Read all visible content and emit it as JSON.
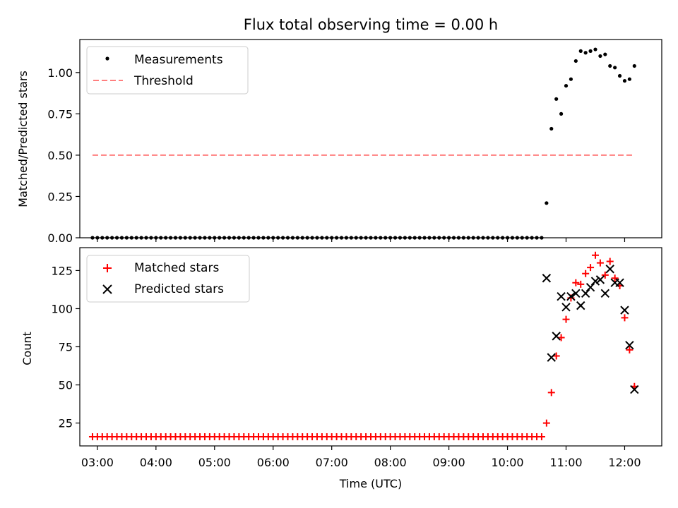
{
  "figure": {
    "title": "Flux total observing time = 0.00 h",
    "xlabel": "Time (UTC)",
    "xticks": [
      "03:00",
      "04:00",
      "05:00",
      "06:00",
      "07:00",
      "08:00",
      "09:00",
      "10:00",
      "11:00",
      "12:00"
    ]
  },
  "chart_data": [
    {
      "type": "scatter",
      "panel": "top",
      "ylabel": "Matched/Predicted stars",
      "xlim": [
        "02:42",
        "12:38"
      ],
      "ylim": [
        0,
        1.2
      ],
      "yticks": [
        "0.00",
        "0.25",
        "0.50",
        "0.75",
        "1.00"
      ],
      "legend_position": "top-left",
      "series": [
        {
          "name": "Measurements",
          "marker": "dot",
          "color": "#000000",
          "x": [
            "02:55",
            "03:00",
            "03:05",
            "03:10",
            "03:15",
            "03:20",
            "03:25",
            "03:30",
            "03:35",
            "03:40",
            "03:45",
            "03:50",
            "03:55",
            "04:00",
            "04:05",
            "04:10",
            "04:15",
            "04:20",
            "04:25",
            "04:30",
            "04:35",
            "04:40",
            "04:45",
            "04:50",
            "04:55",
            "05:00",
            "05:05",
            "05:10",
            "05:15",
            "05:20",
            "05:25",
            "05:30",
            "05:35",
            "05:40",
            "05:45",
            "05:50",
            "05:55",
            "06:00",
            "06:05",
            "06:10",
            "06:15",
            "06:20",
            "06:25",
            "06:30",
            "06:35",
            "06:40",
            "06:45",
            "06:50",
            "06:55",
            "07:00",
            "07:05",
            "07:10",
            "07:15",
            "07:20",
            "07:25",
            "07:30",
            "07:35",
            "07:40",
            "07:45",
            "07:50",
            "07:55",
            "08:00",
            "08:05",
            "08:10",
            "08:15",
            "08:20",
            "08:25",
            "08:30",
            "08:35",
            "08:40",
            "08:45",
            "08:50",
            "08:55",
            "09:00",
            "09:05",
            "09:10",
            "09:15",
            "09:20",
            "09:25",
            "09:30",
            "09:35",
            "09:40",
            "09:45",
            "09:50",
            "09:55",
            "10:00",
            "10:05",
            "10:10",
            "10:15",
            "10:20",
            "10:25",
            "10:30",
            "10:35",
            "10:40",
            "10:45",
            "10:50",
            "10:55",
            "11:00",
            "11:05",
            "11:10",
            "11:15",
            "11:20",
            "11:25",
            "11:30",
            "11:35",
            "11:40",
            "11:45",
            "11:50",
            "11:55",
            "12:00",
            "12:05",
            "12:10"
          ],
          "y": [
            0,
            0,
            0,
            0,
            0,
            0,
            0,
            0,
            0,
            0,
            0,
            0,
            0,
            0,
            0,
            0,
            0,
            0,
            0,
            0,
            0,
            0,
            0,
            0,
            0,
            0,
            0,
            0,
            0,
            0,
            0,
            0,
            0,
            0,
            0,
            0,
            0,
            0,
            0,
            0,
            0,
            0,
            0,
            0,
            0,
            0,
            0,
            0,
            0,
            0,
            0,
            0,
            0,
            0,
            0,
            0,
            0,
            0,
            0,
            0,
            0,
            0,
            0,
            0,
            0,
            0,
            0,
            0,
            0,
            0,
            0,
            0,
            0,
            0,
            0,
            0,
            0,
            0,
            0,
            0,
            0,
            0,
            0,
            0,
            0,
            0,
            0,
            0,
            0,
            0,
            0,
            0,
            0,
            0.21,
            0.66,
            0.84,
            0.75,
            0.92,
            0.96,
            1.07,
            1.13,
            1.12,
            1.13,
            1.14,
            1.1,
            1.11,
            1.04,
            1.03,
            0.98,
            0.95,
            0.96,
            1.04
          ]
        },
        {
          "name": "Threshold",
          "style": "dashed",
          "color": "#ff7f7f",
          "x": [
            "02:55",
            "12:10"
          ],
          "y": [
            0.5,
            0.5
          ]
        }
      ]
    },
    {
      "type": "scatter",
      "panel": "bottom",
      "ylabel": "Count",
      "xlim": [
        "02:42",
        "12:38"
      ],
      "ylim": [
        10,
        140
      ],
      "yticks": [
        "25",
        "50",
        "75",
        "100",
        "125"
      ],
      "legend_position": "top-left",
      "series": [
        {
          "name": "Matched stars",
          "marker": "plus",
          "color": "#ff0000",
          "x": [
            "02:55",
            "03:00",
            "03:05",
            "03:10",
            "03:15",
            "03:20",
            "03:25",
            "03:30",
            "03:35",
            "03:40",
            "03:45",
            "03:50",
            "03:55",
            "04:00",
            "04:05",
            "04:10",
            "04:15",
            "04:20",
            "04:25",
            "04:30",
            "04:35",
            "04:40",
            "04:45",
            "04:50",
            "04:55",
            "05:00",
            "05:05",
            "05:10",
            "05:15",
            "05:20",
            "05:25",
            "05:30",
            "05:35",
            "05:40",
            "05:45",
            "05:50",
            "05:55",
            "06:00",
            "06:05",
            "06:10",
            "06:15",
            "06:20",
            "06:25",
            "06:30",
            "06:35",
            "06:40",
            "06:45",
            "06:50",
            "06:55",
            "07:00",
            "07:05",
            "07:10",
            "07:15",
            "07:20",
            "07:25",
            "07:30",
            "07:35",
            "07:40",
            "07:45",
            "07:50",
            "07:55",
            "08:00",
            "08:05",
            "08:10",
            "08:15",
            "08:20",
            "08:25",
            "08:30",
            "08:35",
            "08:40",
            "08:45",
            "08:50",
            "08:55",
            "09:00",
            "09:05",
            "09:10",
            "09:15",
            "09:20",
            "09:25",
            "09:30",
            "09:35",
            "09:40",
            "09:45",
            "09:50",
            "09:55",
            "10:00",
            "10:05",
            "10:10",
            "10:15",
            "10:20",
            "10:25",
            "10:30",
            "10:35",
            "10:40",
            "10:45",
            "10:50",
            "10:55",
            "11:00",
            "11:05",
            "11:10",
            "11:15",
            "11:20",
            "11:25",
            "11:30",
            "11:35",
            "11:40",
            "11:45",
            "11:50",
            "11:55",
            "12:00",
            "12:05",
            "12:10"
          ],
          "y": [
            16,
            16,
            16,
            16,
            16,
            16,
            16,
            16,
            16,
            16,
            16,
            16,
            16,
            16,
            16,
            16,
            16,
            16,
            16,
            16,
            16,
            16,
            16,
            16,
            16,
            16,
            16,
            16,
            16,
            16,
            16,
            16,
            16,
            16,
            16,
            16,
            16,
            16,
            16,
            16,
            16,
            16,
            16,
            16,
            16,
            16,
            16,
            16,
            16,
            16,
            16,
            16,
            16,
            16,
            16,
            16,
            16,
            16,
            16,
            16,
            16,
            16,
            16,
            16,
            16,
            16,
            16,
            16,
            16,
            16,
            16,
            16,
            16,
            16,
            16,
            16,
            16,
            16,
            16,
            16,
            16,
            16,
            16,
            16,
            16,
            16,
            16,
            16,
            16,
            16,
            16,
            16,
            16,
            25,
            45,
            69,
            81,
            93,
            107,
            117,
            116,
            123,
            127,
            135,
            130,
            122,
            131,
            120,
            115,
            94,
            73,
            49
          ]
        },
        {
          "name": "Predicted stars",
          "marker": "x",
          "color": "#000000",
          "x": [
            "10:40",
            "10:45",
            "10:50",
            "10:55",
            "11:00",
            "11:05",
            "11:10",
            "11:15",
            "11:20",
            "11:25",
            "11:30",
            "11:35",
            "11:40",
            "11:45",
            "11:50",
            "11:55",
            "12:00",
            "12:05",
            "12:10"
          ],
          "y": [
            120,
            68,
            82,
            108,
            101,
            108,
            110,
            102,
            110,
            114,
            118,
            119,
            110,
            126,
            117,
            117,
            99,
            76,
            47
          ]
        }
      ]
    }
  ]
}
